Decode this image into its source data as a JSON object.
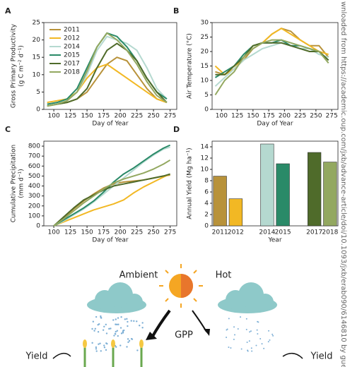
{
  "chart_data": [
    {
      "type": "line",
      "panel": "A",
      "xlabel": "Day of Year",
      "ylabel": [
        "Gross Primary Productivity",
        "(g C m⁻² d⁻¹)"
      ],
      "x": [
        90,
        105,
        120,
        135,
        150,
        165,
        180,
        195,
        210,
        225,
        240,
        255,
        270
      ],
      "xlim": [
        85,
        285
      ],
      "xticks": [
        100,
        125,
        150,
        175,
        200,
        225,
        250,
        275
      ],
      "ylim": [
        0,
        25
      ],
      "yticks": [
        0,
        5,
        10,
        15,
        20,
        25
      ],
      "legend": "upper left",
      "series": [
        {
          "name": "2011",
          "color": "#b8923a",
          "values": [
            1,
            1.5,
            2,
            3,
            5,
            9,
            13,
            15,
            14,
            10,
            6,
            3,
            2
          ]
        },
        {
          "name": "2012",
          "color": "#f2b824",
          "values": [
            2,
            2.5,
            3,
            5,
            9,
            12,
            13,
            11,
            9,
            7,
            5,
            3,
            2
          ]
        },
        {
          "name": "2014",
          "color": "#b5d9d0",
          "values": [
            1,
            1.5,
            2.5,
            5,
            10,
            17,
            21,
            20,
            19,
            17,
            12,
            6,
            3
          ]
        },
        {
          "name": "2015",
          "color": "#2a8a68",
          "values": [
            1.5,
            2,
            3,
            6,
            12,
            18,
            22,
            21,
            18,
            14,
            9,
            5,
            3
          ]
        },
        {
          "name": "2017",
          "color": "#4f6b2a",
          "values": [
            1,
            1.5,
            2,
            3,
            6,
            12,
            17,
            19,
            17,
            14,
            9,
            5,
            2
          ]
        },
        {
          "name": "2018",
          "color": "#93a860",
          "values": [
            1,
            1.5,
            2.5,
            5,
            11,
            18,
            22,
            20,
            17,
            13,
            8,
            4,
            2
          ]
        }
      ]
    },
    {
      "type": "line",
      "panel": "B",
      "xlabel": "Day of Year",
      "ylabel": [
        "Air Temperature (°C)"
      ],
      "x": [
        90,
        105,
        120,
        135,
        150,
        165,
        180,
        195,
        210,
        225,
        240,
        255,
        270
      ],
      "xlim": [
        85,
        285
      ],
      "xticks": [
        100,
        125,
        150,
        175,
        200,
        225,
        250,
        275
      ],
      "ylim": [
        0,
        30
      ],
      "yticks": [
        0,
        5,
        10,
        15,
        20,
        25,
        30
      ],
      "series": [
        {
          "name": "2011",
          "color": "#b8923a",
          "values": [
            13,
            12,
            14,
            17,
            21,
            23,
            26,
            28,
            27,
            24,
            22,
            22,
            18
          ]
        },
        {
          "name": "2012",
          "color": "#f2b824",
          "values": [
            15,
            12,
            14,
            18,
            22,
            23,
            26,
            28,
            26,
            24,
            22,
            20,
            19
          ]
        },
        {
          "name": "2014",
          "color": "#b5d9d0",
          "values": [
            8,
            11,
            14,
            17,
            19,
            21,
            22,
            23,
            22,
            21,
            21,
            19,
            18
          ]
        },
        {
          "name": "2015",
          "color": "#2a8a68",
          "values": [
            11,
            13,
            15,
            19,
            22,
            23,
            23,
            24,
            22,
            22,
            21,
            20,
            17
          ]
        },
        {
          "name": "2017",
          "color": "#4f6b2a",
          "values": [
            12,
            12,
            15,
            18,
            22,
            23,
            23,
            23,
            22,
            21,
            20,
            20,
            17
          ]
        },
        {
          "name": "2018",
          "color": "#93a860",
          "values": [
            5,
            10,
            13,
            18,
            21,
            23,
            24,
            24,
            23,
            22,
            21,
            20,
            16
          ]
        }
      ]
    },
    {
      "type": "line",
      "panel": "C",
      "xlabel": "Day of Year",
      "ylabel": [
        "Cumulative Precipitation",
        "(mm d⁻¹)"
      ],
      "x": [
        100,
        115,
        130,
        145,
        160,
        175,
        190,
        205,
        220,
        235,
        250,
        265,
        275
      ],
      "xlim": [
        85,
        285
      ],
      "xticks": [
        100,
        125,
        150,
        175,
        200,
        225,
        250,
        275
      ],
      "ylim": [
        0,
        850
      ],
      "yticks": [
        0,
        100,
        200,
        300,
        400,
        500,
        600,
        700,
        800
      ],
      "series": [
        {
          "name": "2011",
          "color": "#b8923a",
          "values": [
            0,
            80,
            170,
            250,
            320,
            380,
            420,
            440,
            450,
            460,
            480,
            500,
            510
          ]
        },
        {
          "name": "2012",
          "color": "#f2b824",
          "values": [
            0,
            40,
            80,
            120,
            160,
            190,
            220,
            260,
            330,
            390,
            440,
            490,
            520
          ]
        },
        {
          "name": "2014",
          "color": "#b5d9d0",
          "values": [
            0,
            50,
            110,
            170,
            240,
            320,
            400,
            480,
            560,
            640,
            710,
            770,
            790
          ]
        },
        {
          "name": "2015",
          "color": "#2a8a68",
          "values": [
            0,
            60,
            120,
            180,
            250,
            340,
            440,
            520,
            580,
            650,
            720,
            780,
            810
          ]
        },
        {
          "name": "2017",
          "color": "#4f6b2a",
          "values": [
            0,
            90,
            180,
            260,
            310,
            360,
            400,
            420,
            440,
            460,
            480,
            500,
            520
          ]
        },
        {
          "name": "2018",
          "color": "#93a860",
          "values": [
            0,
            70,
            150,
            230,
            300,
            370,
            430,
            470,
            500,
            530,
            570,
            620,
            660
          ]
        }
      ]
    },
    {
      "type": "bar",
      "panel": "D",
      "xlabel": "Year",
      "ylabel": [
        "Annual Yield (Mg ha⁻¹)"
      ],
      "categories": [
        "2011",
        "2012",
        null,
        "2014",
        "2015",
        null,
        "2017",
        "2018"
      ],
      "values": [
        8.8,
        4.8,
        null,
        14.5,
        11.0,
        null,
        13.0,
        11.3
      ],
      "colors": [
        "#b8923a",
        "#f2b824",
        null,
        "#b5d9d0",
        "#2a8a68",
        null,
        "#4f6b2a",
        "#93a860"
      ],
      "ylim": [
        0,
        15
      ],
      "yticks": [
        0,
        2,
        4,
        6,
        8,
        10,
        12,
        14
      ]
    }
  ],
  "diagram": {
    "ambient": "Ambient",
    "hot": "Hot",
    "gpp": "GPP",
    "yield_left": "Yield",
    "yield_right": "Yield"
  },
  "watermark": "wnloaded from https://academic.oup.com/jxb/advance-article/doi/10.1093/jxb/erab090/6146810 by gue"
}
